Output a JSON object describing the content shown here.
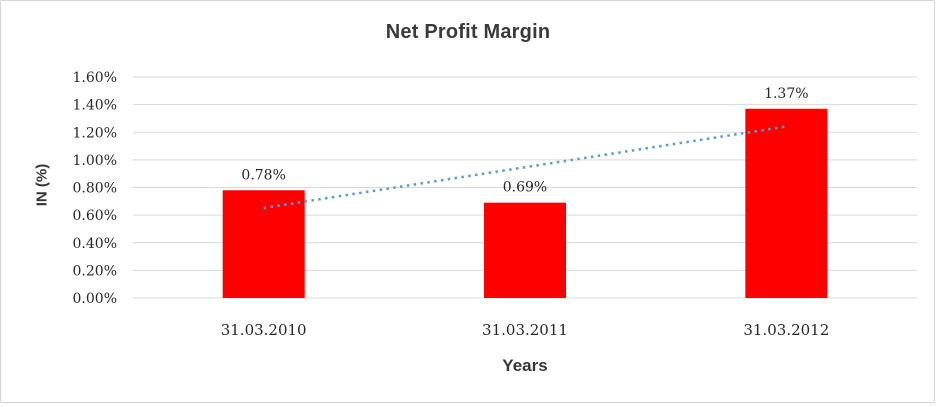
{
  "window": {
    "background": "#ffffff",
    "border_color": "#d5d5d5"
  },
  "chart_data": {
    "type": "bar",
    "title": "Net Profit Margin",
    "xlabel": "Years",
    "ylabel": "IN (%)",
    "categories": [
      "31.03.2010",
      "31.03.2011",
      "31.03.2012"
    ],
    "series": [
      {
        "name": "Net Profit Margin",
        "values": [
          0.78,
          0.69,
          1.37
        ],
        "labels": [
          "0.78%",
          "0.69%",
          "1.37%"
        ],
        "color": "#ff0000"
      }
    ],
    "trendline": {
      "type": "linear",
      "style": "dotted",
      "color": "#5b9bd5"
    },
    "ylim": [
      0,
      1.6
    ],
    "y_tick_values": [
      0.0,
      0.2,
      0.4,
      0.6,
      0.8,
      1.0,
      1.2,
      1.4,
      1.6
    ],
    "y_tick_labels": [
      "0.00%",
      "0.20%",
      "0.40%",
      "0.60%",
      "0.80%",
      "1.00%",
      "1.20%",
      "1.40%",
      "1.60%"
    ],
    "grid": true,
    "gridline_color": "#d9d9d9",
    "legend": "none",
    "label_color": "#262626",
    "title_color": "#3a3a3a"
  }
}
